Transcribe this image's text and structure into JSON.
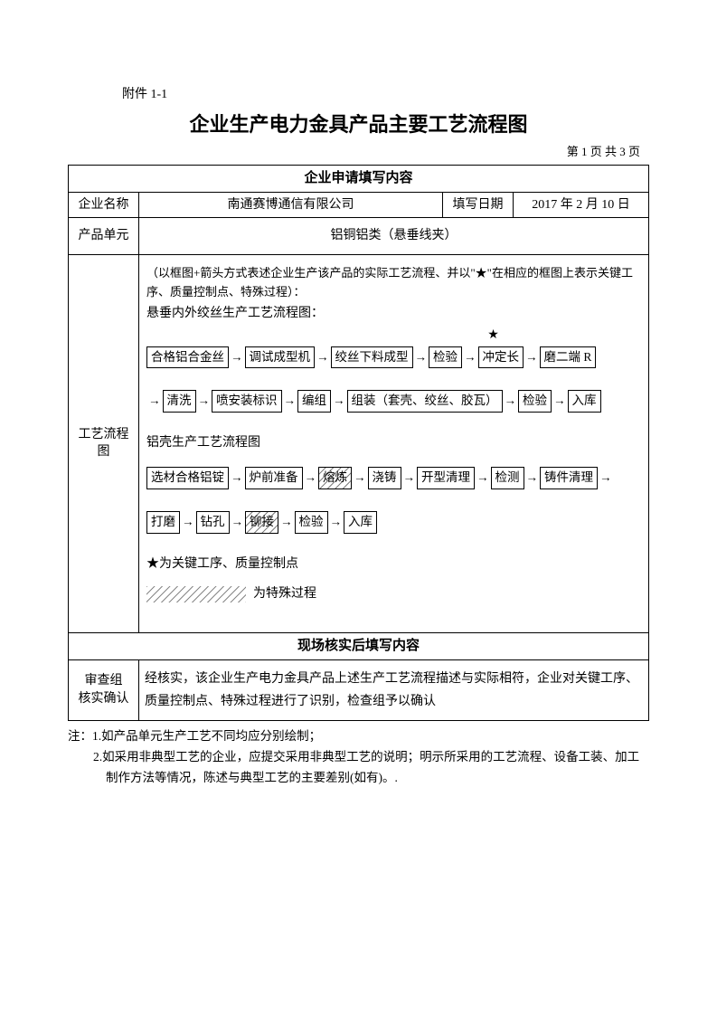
{
  "attachment_label": "附件 1-1",
  "title": "企业生产电力金具产品主要工艺流程图",
  "page_info": "第 1 页    共 3 页",
  "section_header_1": "企业申请填写内容",
  "labels": {
    "company_name": "企业名称",
    "fill_date": "填写日期",
    "product_unit": "产品单元",
    "flow_diagram": "工艺流程\n图",
    "review_confirm": "审查组\n核实确认"
  },
  "company_name": "南通赛博通信有限公司",
  "fill_date": "2017 年 2 月 10 日",
  "product_unit": "铝铜铝类（悬垂线夹）",
  "flow": {
    "intro": "（以框图+箭头方式表述企业生产该产品的实际工艺流程、并以\"★\"在相应的框图上表示关键工序、质量控制点、特殊过程）：",
    "sub1_title": "悬垂内外绞丝生产工艺流程图：",
    "star": "★",
    "line1": [
      "合格铝合金丝",
      "调试成型机",
      "绞丝下料成型",
      "检验",
      "冲定长",
      "磨二端 R"
    ],
    "line2": [
      "清洗",
      "喷安装标识",
      "编组",
      "组装（套壳、绞丝、胶瓦）",
      "检验",
      "入库"
    ],
    "sub2_title": "铝壳生产工艺流程图",
    "line3": [
      "选材合格铝锭",
      "炉前准备",
      "熔炼",
      "浇铸",
      "开型清理",
      "检测",
      "铸件清理"
    ],
    "line4": [
      "打磨",
      "钻孔",
      "铆接",
      "检验",
      "入库"
    ],
    "legend_star": "★为关键工序、质量控制点",
    "legend_hatch": "为特殊过程"
  },
  "section_header_2": "现场核实后填写内容",
  "verify_text": "经核实，该企业生产电力金具产品上述生产工艺流程描述与实际相符，企业对关键工序、质量控制点、特殊过程进行了识别，检查组予以确认",
  "notes_line1": "注：1.如产品单元生产工艺不同均应分别绘制；",
  "notes_line2": "2.如采用非典型工艺的企业，应提交采用非典型工艺的说明；明示所采用的工艺流程、设备工装、加工制作方法等情况，陈述与典型工艺的主要差别(如有)。."
}
